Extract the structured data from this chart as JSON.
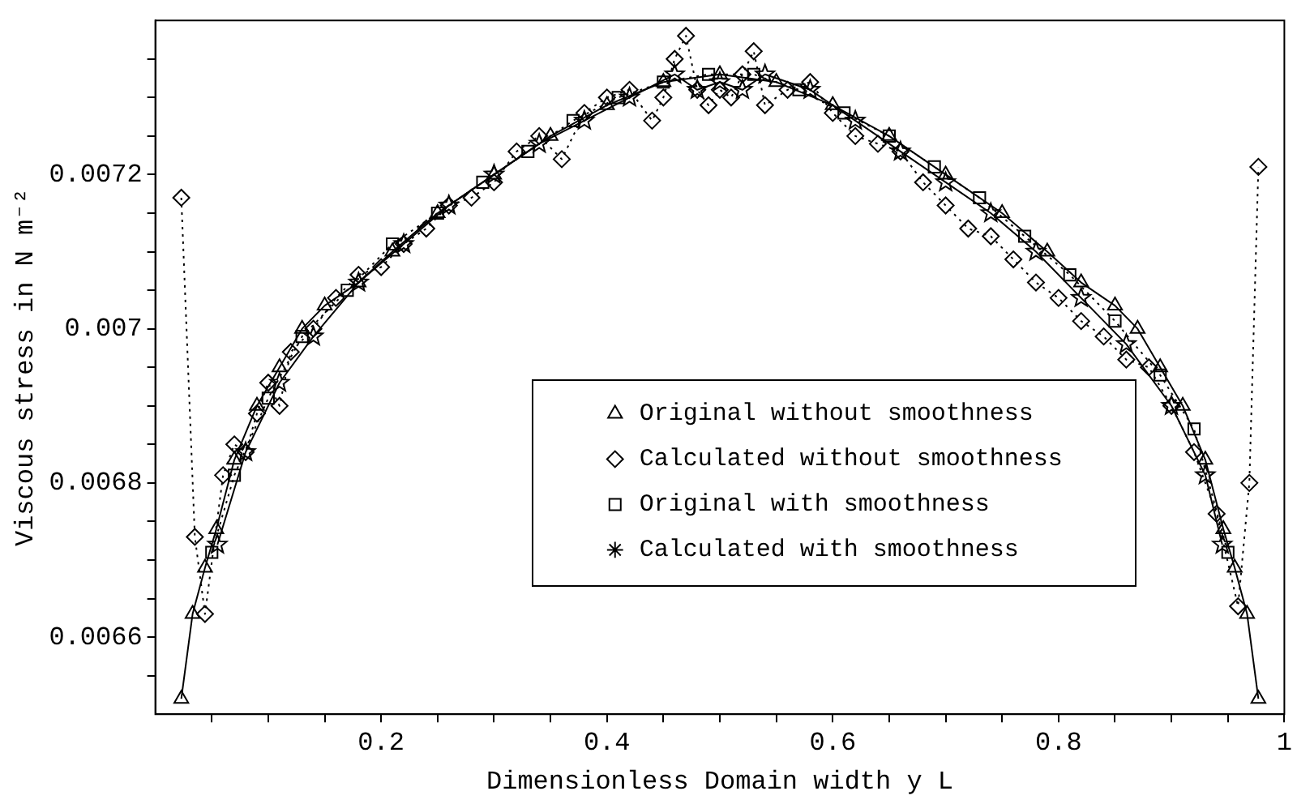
{
  "chart_data": {
    "type": "line",
    "xlabel": "Dimensionless Domain width y L",
    "ylabel": "Viscous stress in N m⁻²",
    "xlim": [
      0,
      1
    ],
    "ylim": [
      0.0065,
      0.0074
    ],
    "xticks": [
      {
        "value": 0.05,
        "label": null
      },
      {
        "value": 0.1,
        "label": null
      },
      {
        "value": 0.15,
        "label": null
      },
      0.2,
      {
        "value": 0.25,
        "label": null
      },
      {
        "value": 0.3,
        "label": null
      },
      {
        "value": 0.35,
        "label": null
      },
      0.4,
      {
        "value": 0.45,
        "label": null
      },
      {
        "value": 0.5,
        "label": null
      },
      {
        "value": 0.55,
        "label": null
      },
      0.6,
      {
        "value": 0.65,
        "label": null
      },
      {
        "value": 0.7,
        "label": null
      },
      {
        "value": 0.75,
        "label": null
      },
      0.8,
      {
        "value": 0.85,
        "label": null
      },
      {
        "value": 0.9,
        "label": null
      },
      {
        "value": 0.95,
        "label": null
      },
      1
    ],
    "yticks": [
      {
        "value": 0.00655,
        "label": null
      },
      0.0066,
      {
        "value": 0.00665,
        "label": null
      },
      {
        "value": 0.0067,
        "label": null
      },
      {
        "value": 0.00675,
        "label": null
      },
      0.0068,
      {
        "value": 0.00685,
        "label": null
      },
      {
        "value": 0.0069,
        "label": null
      },
      {
        "value": 0.00695,
        "label": null
      },
      0.007,
      {
        "value": 0.00705,
        "label": null
      },
      {
        "value": 0.0071,
        "label": null
      },
      {
        "value": 0.00715,
        "label": null
      },
      0.0072,
      {
        "value": 0.00725,
        "label": null
      },
      {
        "value": 0.0073,
        "label": null
      },
      {
        "value": 0.00735,
        "label": null
      }
    ],
    "legend": "center",
    "series": [
      {
        "name": "Original without smoothness",
        "color": "#000000",
        "marker": "triangle",
        "line_style": "solid",
        "x": [
          0.023,
          0.033,
          0.044,
          0.054,
          0.07,
          0.09,
          0.11,
          0.13,
          0.15,
          0.18,
          0.21,
          0.25,
          0.3,
          0.35,
          0.4,
          0.45,
          0.5,
          0.55,
          0.6,
          0.65,
          0.7,
          0.75,
          0.79,
          0.82,
          0.85,
          0.87,
          0.89,
          0.91,
          0.93,
          0.946,
          0.956,
          0.967,
          0.977
        ],
        "values": [
          0.00652,
          0.00663,
          0.00669,
          0.00674,
          0.00683,
          0.0069,
          0.00695,
          0.007,
          0.00703,
          0.00706,
          0.0071,
          0.00715,
          0.0072,
          0.00725,
          0.00729,
          0.00732,
          0.00733,
          0.00732,
          0.00729,
          0.00725,
          0.0072,
          0.00715,
          0.0071,
          0.00706,
          0.00703,
          0.007,
          0.00695,
          0.0069,
          0.00683,
          0.00674,
          0.00669,
          0.00663,
          0.00652
        ]
      },
      {
        "name": "Calculated without smoothness",
        "color": "#000000",
        "marker": "diamond",
        "line_style": "dotted",
        "x": [
          0.023,
          0.035,
          0.044,
          0.06,
          0.07,
          0.08,
          0.09,
          0.1,
          0.11,
          0.12,
          0.14,
          0.16,
          0.18,
          0.2,
          0.22,
          0.24,
          0.26,
          0.28,
          0.3,
          0.32,
          0.34,
          0.36,
          0.38,
          0.4,
          0.42,
          0.44,
          0.45,
          0.46,
          0.47,
          0.48,
          0.49,
          0.5,
          0.51,
          0.52,
          0.53,
          0.54,
          0.56,
          0.58,
          0.6,
          0.62,
          0.64,
          0.66,
          0.68,
          0.7,
          0.72,
          0.74,
          0.76,
          0.78,
          0.8,
          0.82,
          0.84,
          0.86,
          0.88,
          0.9,
          0.92,
          0.94,
          0.959,
          0.969,
          0.977
        ],
        "values": [
          0.00717,
          0.00673,
          0.00663,
          0.00681,
          0.00685,
          0.00684,
          0.00689,
          0.00693,
          0.0069,
          0.00697,
          0.007,
          0.00704,
          0.00707,
          0.00708,
          0.00711,
          0.00713,
          0.00716,
          0.00717,
          0.00719,
          0.00723,
          0.00725,
          0.00722,
          0.00728,
          0.0073,
          0.00731,
          0.00727,
          0.0073,
          0.00735,
          0.00738,
          0.00731,
          0.00729,
          0.00731,
          0.0073,
          0.00733,
          0.00736,
          0.00729,
          0.00731,
          0.00732,
          0.00728,
          0.00725,
          0.00724,
          0.00723,
          0.00719,
          0.00716,
          0.00713,
          0.00712,
          0.00709,
          0.00706,
          0.00704,
          0.00701,
          0.00699,
          0.00696,
          0.00695,
          0.0069,
          0.00684,
          0.00676,
          0.00664,
          0.0068,
          0.00721
        ]
      },
      {
        "name": "Original with smoothness",
        "color": "#000000",
        "marker": "square",
        "line_style": "dotted",
        "x": [
          0.05,
          0.07,
          0.1,
          0.13,
          0.17,
          0.21,
          0.25,
          0.29,
          0.33,
          0.37,
          0.41,
          0.45,
          0.49,
          0.53,
          0.57,
          0.61,
          0.65,
          0.69,
          0.73,
          0.77,
          0.81,
          0.85,
          0.89,
          0.92,
          0.95
        ],
        "values": [
          0.00671,
          0.00681,
          0.00691,
          0.00699,
          0.00705,
          0.00711,
          0.00715,
          0.00719,
          0.00723,
          0.00727,
          0.0073,
          0.00732,
          0.00733,
          0.00733,
          0.00731,
          0.00728,
          0.00725,
          0.00721,
          0.00717,
          0.00712,
          0.00707,
          0.00701,
          0.00694,
          0.00687,
          0.00671
        ]
      },
      {
        "name": "Calculated with smoothness",
        "color": "#000000",
        "marker": "star",
        "line_style": "solid",
        "x": [
          0.055,
          0.08,
          0.11,
          0.14,
          0.18,
          0.22,
          0.26,
          0.3,
          0.34,
          0.38,
          0.42,
          0.46,
          0.48,
          0.5,
          0.52,
          0.54,
          0.58,
          0.62,
          0.66,
          0.7,
          0.74,
          0.78,
          0.82,
          0.86,
          0.9,
          0.93,
          0.945
        ],
        "values": [
          0.00672,
          0.00684,
          0.00693,
          0.00699,
          0.00706,
          0.00711,
          0.00716,
          0.0072,
          0.00724,
          0.00727,
          0.0073,
          0.00733,
          0.00731,
          0.00732,
          0.00731,
          0.00733,
          0.00731,
          0.00727,
          0.00723,
          0.00719,
          0.00715,
          0.0071,
          0.00704,
          0.00698,
          0.0069,
          0.00681,
          0.00672
        ]
      }
    ]
  }
}
